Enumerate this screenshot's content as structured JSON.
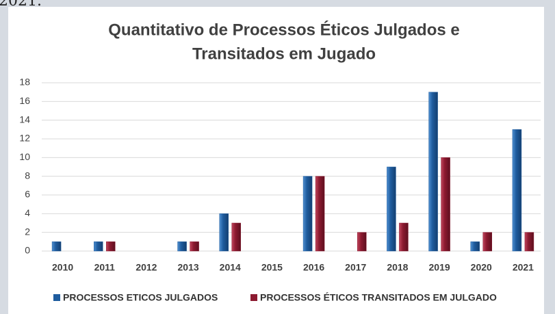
{
  "fragment": "2021.",
  "chart_data": {
    "type": "bar",
    "title": "Quantitativo de Processos Éticos Julgados e Transitados em Jugado",
    "title_lines": [
      "Quantitativo de Processos Éticos Julgados e",
      "Transitados em Jugado"
    ],
    "categories": [
      "2010",
      "2011",
      "2012",
      "2013",
      "2014",
      "2015",
      "2016",
      "2017",
      "2018",
      "2019",
      "2020",
      "2021"
    ],
    "series": [
      {
        "name": "PROCESSOS ETICOS JULGADOS",
        "color": "#1f5c9e",
        "values": [
          1,
          1,
          0,
          1,
          4,
          0,
          8,
          0,
          9,
          17,
          1,
          13
        ]
      },
      {
        "name": "PROCESSOS ÉTICOS TRANSITADOS EM JULGADO",
        "color": "#8c1a30",
        "values": [
          0,
          1,
          0,
          1,
          3,
          0,
          8,
          2,
          3,
          10,
          2,
          2
        ]
      }
    ],
    "ylim": [
      0,
      18
    ],
    "yticks": [
      0,
      2,
      4,
      6,
      8,
      10,
      12,
      14,
      16,
      18
    ],
    "grid": true,
    "legend": "bottom"
  }
}
